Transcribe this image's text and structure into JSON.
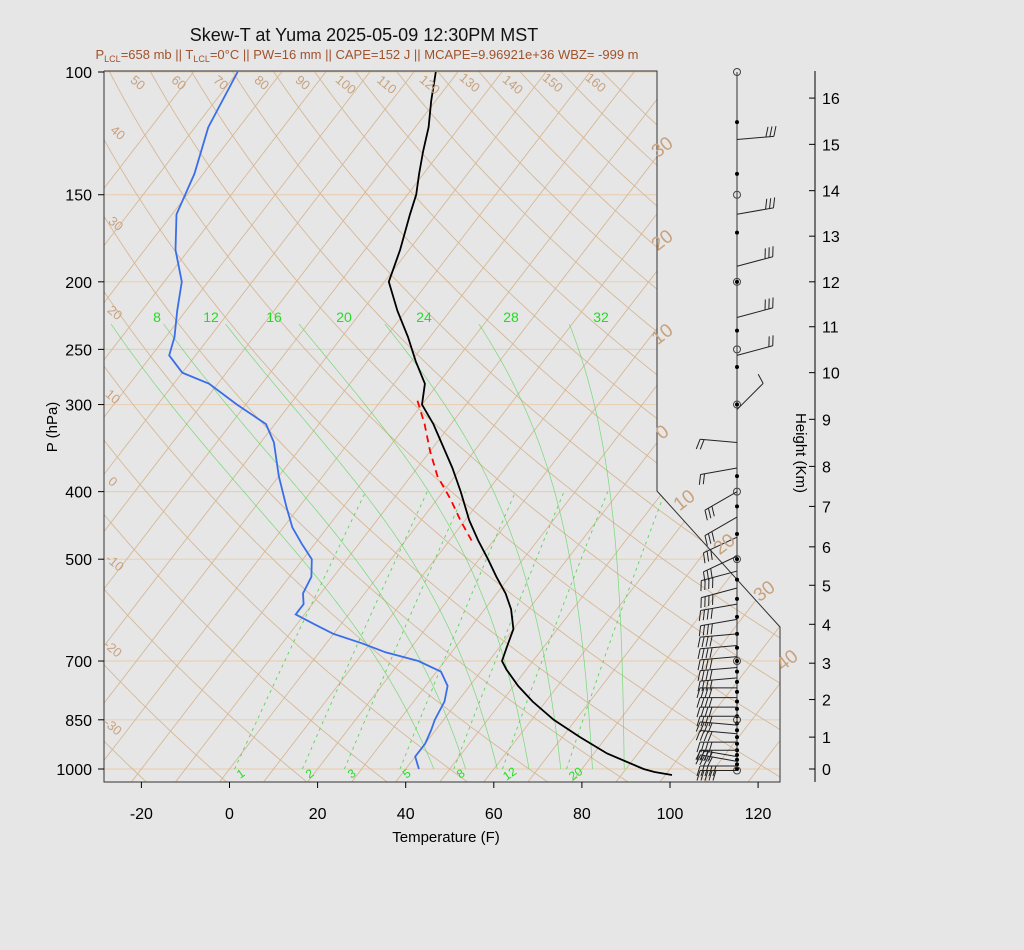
{
  "chart_data": {
    "type": "line",
    "title": "Skew-T at Yuma 2025-05-09 12:30PM MST",
    "subtitle": {
      "plcl": "P",
      "plcl_sub": "LCL",
      "plcl_val": "=658 mb || T",
      "tlcl_sub": "LCL",
      "rest": "=0°C || PW=16 mm || CAPE=152 J || MCAPE=9.96921e+36 WBZ= -999 m"
    },
    "xlabel": "Temperature (F)",
    "ylabel": "P (hPa)",
    "y2label": "Height (Km)",
    "x_ticks": [
      "-20",
      "0",
      "20",
      "40",
      "60",
      "80",
      "100",
      "120"
    ],
    "x_tick_values": [
      -20,
      0,
      20,
      40,
      60,
      80,
      100,
      120
    ],
    "xlim": [
      -29,
      125
    ],
    "p_ticks": [
      "100",
      "150",
      "200",
      "250",
      "300",
      "400",
      "500",
      "700",
      "850",
      "1000"
    ],
    "p_tick_values": [
      100,
      150,
      200,
      250,
      300,
      400,
      500,
      700,
      850,
      1000
    ],
    "ylim": [
      1040,
      100
    ],
    "y_scale": "log",
    "height_ticks": [
      "0",
      "1",
      "2",
      "3",
      "4",
      "5",
      "6",
      "7",
      "8",
      "9",
      "10",
      "11",
      "12",
      "13",
      "14",
      "15",
      "16"
    ],
    "dry_adiabat_labels": [
      "-30",
      "-20",
      "-10",
      "0",
      "10",
      "20",
      "30",
      "40",
      "50",
      "60",
      "70",
      "80",
      "90",
      "100",
      "110",
      "120",
      "130",
      "140",
      "150",
      "160"
    ],
    "moist_adiabat_labels": [
      "8",
      "12",
      "16",
      "20",
      "24",
      "28",
      "32"
    ],
    "isotherm_labels_right": [
      "30",
      "20",
      "10",
      "0",
      "10",
      "20",
      "30",
      "40"
    ],
    "mixing_ratio_labels": [
      "1",
      "2",
      "3",
      "5",
      "8",
      "12",
      "20"
    ],
    "series": [
      {
        "name": "temperature",
        "color": "#000000",
        "points": [
          [
            1020,
            101.5
          ],
          [
            1010,
            97
          ],
          [
            1000,
            94
          ],
          [
            950,
            83
          ],
          [
            900,
            74
          ],
          [
            850,
            65
          ],
          [
            800,
            57
          ],
          [
            760,
            51
          ],
          [
            720,
            45.5
          ],
          [
            700,
            43
          ],
          [
            665,
            41.5
          ],
          [
            630,
            40
          ],
          [
            590,
            36
          ],
          [
            560,
            32
          ],
          [
            530,
            27
          ],
          [
            500,
            22
          ],
          [
            470,
            16.5
          ],
          [
            440,
            11
          ],
          [
            400,
            4
          ],
          [
            370,
            -2
          ],
          [
            340,
            -9
          ],
          [
            320,
            -14
          ],
          [
            300,
            -20
          ],
          [
            280,
            -23
          ],
          [
            260,
            -29
          ],
          [
            240,
            -35
          ],
          [
            220,
            -42
          ],
          [
            200,
            -49
          ],
          [
            180,
            -52
          ],
          [
            160,
            -56
          ],
          [
            150,
            -58
          ],
          [
            140,
            -61
          ],
          [
            130,
            -64
          ],
          [
            120,
            -67
          ],
          [
            110,
            -71
          ],
          [
            100,
            -75
          ]
        ]
      },
      {
        "name": "dewpoint",
        "color": "#3a6ee8",
        "points": [
          [
            1000,
            43
          ],
          [
            960,
            40
          ],
          [
            920,
            40
          ],
          [
            880,
            39
          ],
          [
            850,
            38
          ],
          [
            800,
            37
          ],
          [
            760,
            35
          ],
          [
            725,
            31
          ],
          [
            700,
            24
          ],
          [
            680,
            15
          ],
          [
            660,
            8
          ],
          [
            640,
            0
          ],
          [
            620,
            -6
          ],
          [
            600,
            -12
          ],
          [
            580,
            -12
          ],
          [
            560,
            -14
          ],
          [
            530,
            -15
          ],
          [
            500,
            -18
          ],
          [
            475,
            -23
          ],
          [
            450,
            -28
          ],
          [
            420,
            -33
          ],
          [
            380,
            -40
          ],
          [
            340,
            -47
          ],
          [
            320,
            -52
          ],
          [
            300,
            -62
          ],
          [
            280,
            -72
          ],
          [
            270,
            -80
          ],
          [
            255,
            -86
          ],
          [
            240,
            -88
          ],
          [
            220,
            -92
          ],
          [
            200,
            -96
          ],
          [
            180,
            -103
          ],
          [
            160,
            -109
          ],
          [
            140,
            -112
          ],
          [
            120,
            -117
          ],
          [
            100,
            -120
          ]
        ]
      },
      {
        "name": "parcel",
        "color": "#ff0000",
        "dashed": true,
        "points": [
          [
            470,
            15
          ],
          [
            440,
            9
          ],
          [
            410,
            3
          ],
          [
            380,
            -4
          ],
          [
            350,
            -10
          ],
          [
            320,
            -16
          ],
          [
            295,
            -22
          ]
        ]
      }
    ],
    "isotherm_values_f": [
      -130,
      -120,
      -110,
      -100,
      -90,
      -80,
      -70,
      -60,
      -50,
      -40,
      -30,
      -20,
      -10,
      0,
      10,
      20,
      30,
      40,
      50,
      60,
      70,
      80,
      90,
      100,
      110,
      120,
      130,
      140
    ],
    "dry_adiabat_theta_c": [
      -60,
      -50,
      -40,
      -30,
      -20,
      -10,
      0,
      10,
      20,
      30,
      40,
      50,
      60,
      70,
      80,
      90,
      100,
      110,
      120,
      130,
      140,
      150,
      160,
      170,
      180
    ],
    "moist_adiabat_thetaw_c": [
      8,
      12,
      16,
      20,
      24,
      28,
      32
    ],
    "mixing_ratio_gkg": [
      1,
      2,
      3,
      5,
      8,
      12,
      20
    ],
    "wind_barbs": {
      "levels": [
        {
          "p": 1005,
          "dir": 270,
          "spd": 45
        },
        {
          "p": 990,
          "dir": 270,
          "spd": 45
        },
        {
          "p": 975,
          "dir": 280,
          "spd": 40
        },
        {
          "p": 960,
          "dir": 280,
          "spd": 40
        },
        {
          "p": 940,
          "dir": 270,
          "spd": 40
        },
        {
          "p": 915,
          "dir": 270,
          "spd": 40
        },
        {
          "p": 890,
          "dir": 275,
          "spd": 40
        },
        {
          "p": 865,
          "dir": 275,
          "spd": 40
        },
        {
          "p": 840,
          "dir": 270,
          "spd": 40
        },
        {
          "p": 815,
          "dir": 270,
          "spd": 40
        },
        {
          "p": 790,
          "dir": 270,
          "spd": 40
        },
        {
          "p": 765,
          "dir": 270,
          "spd": 40
        },
        {
          "p": 740,
          "dir": 265,
          "spd": 40
        },
        {
          "p": 715,
          "dir": 265,
          "spd": 40
        },
        {
          "p": 690,
          "dir": 265,
          "spd": 40
        },
        {
          "p": 665,
          "dir": 265,
          "spd": 40
        },
        {
          "p": 640,
          "dir": 265,
          "spd": 40
        },
        {
          "p": 610,
          "dir": 260,
          "spd": 40
        },
        {
          "p": 580,
          "dir": 260,
          "spd": 40
        },
        {
          "p": 550,
          "dir": 255,
          "spd": 35
        },
        {
          "p": 520,
          "dir": 255,
          "spd": 35
        },
        {
          "p": 495,
          "dir": 245,
          "spd": 30
        },
        {
          "p": 465,
          "dir": 245,
          "spd": 30
        },
        {
          "p": 435,
          "dir": 240,
          "spd": 25
        },
        {
          "p": 400,
          "dir": 240,
          "spd": 25
        },
        {
          "p": 370,
          "dir": 260,
          "spd": 20
        },
        {
          "p": 340,
          "dir": 275,
          "spd": 20
        },
        {
          "p": 305,
          "dir": 45,
          "spd": 10
        },
        {
          "p": 255,
          "dir": 75,
          "spd": 15
        },
        {
          "p": 225,
          "dir": 75,
          "spd": 25
        },
        {
          "p": 190,
          "dir": 75,
          "spd": 25
        },
        {
          "p": 160,
          "dir": 80,
          "spd": 25
        },
        {
          "p": 125,
          "dir": 85,
          "spd": 25
        }
      ],
      "dots_p": [
        1000,
        985,
        970,
        955,
        940,
        920,
        900,
        880,
        860,
        840,
        820,
        800,
        775,
        750,
        725,
        700,
        670,
        640,
        605,
        570,
        535,
        500,
        460,
        420,
        380,
        300,
        265,
        235,
        200,
        170,
        140,
        118
      ],
      "open_circles_p": [
        1005,
        850,
        700,
        500,
        400,
        300,
        250,
        200,
        150,
        100
      ]
    },
    "grid": true,
    "colors": {
      "background": "#e6e6e6",
      "isopleth": "#d6b896",
      "isobar": "#e8cfb5",
      "mixing": "#5bd45b",
      "temperature": "#000000",
      "dewpoint": "#3a6ee8",
      "parcel": "#ff0000"
    }
  }
}
